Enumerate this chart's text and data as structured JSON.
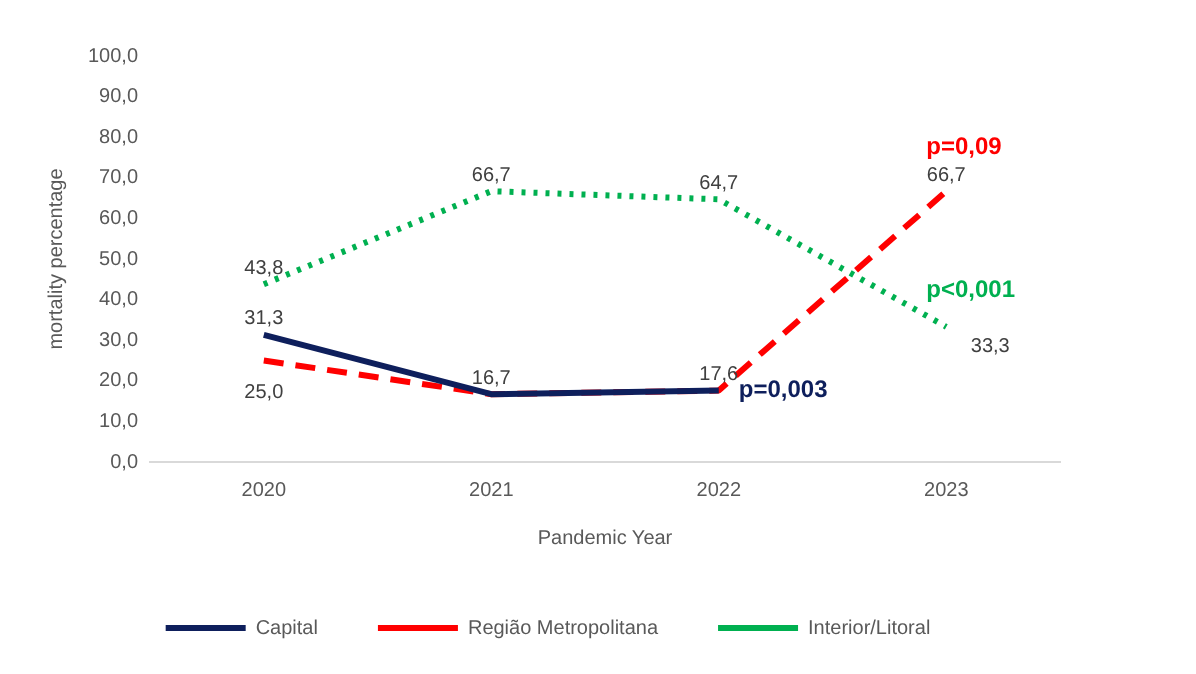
{
  "chart_data": {
    "type": "line",
    "xlabel": "Pandemic Year",
    "ylabel": "mortality percentage",
    "categories": [
      "2020",
      "2021",
      "2022",
      "2023"
    ],
    "ylim": [
      0,
      100
    ],
    "yticks": [
      {
        "value": 0,
        "label": "0,0"
      },
      {
        "value": 10,
        "label": "10,0"
      },
      {
        "value": 20,
        "label": "20,0"
      },
      {
        "value": 30,
        "label": "30,0"
      },
      {
        "value": 40,
        "label": "40,0"
      },
      {
        "value": 50,
        "label": "50,0"
      },
      {
        "value": 60,
        "label": "60,0"
      },
      {
        "value": 70,
        "label": "70,0"
      },
      {
        "value": 80,
        "label": "80,0"
      },
      {
        "value": 90,
        "label": "90,0"
      },
      {
        "value": 100,
        "label": "100,0"
      }
    ],
    "series": [
      {
        "name": "Capital",
        "color": "#0e1f5c",
        "line_style": "solid",
        "values": [
          31.3,
          16.7,
          17.6,
          null
        ],
        "value_labels": [
          "31,3",
          "16,7",
          "17,6",
          null
        ]
      },
      {
        "name": "Região Metropolitana",
        "color": "#ff0000",
        "line_style": "dashed",
        "values": [
          25.0,
          16.7,
          17.6,
          66.7
        ],
        "value_labels": [
          "25,0",
          null,
          null,
          "66,7"
        ]
      },
      {
        "name": "Interior/Litoral",
        "color": "#00b050",
        "line_style": "dotted",
        "values": [
          43.8,
          66.7,
          64.7,
          33.3
        ],
        "value_labels": [
          "43,8",
          "66,7",
          "64,7",
          "33,3"
        ]
      }
    ],
    "annotations": [
      {
        "text": "p=0,003",
        "x": "2022",
        "y": 17.6
      },
      {
        "text": "p=0,09",
        "x": "2023",
        "y": 66.7
      },
      {
        "text": "p<0,001",
        "x": "2023",
        "y": 33.3
      }
    ],
    "legend": "bottom",
    "grid": false,
    "marker": "none"
  }
}
